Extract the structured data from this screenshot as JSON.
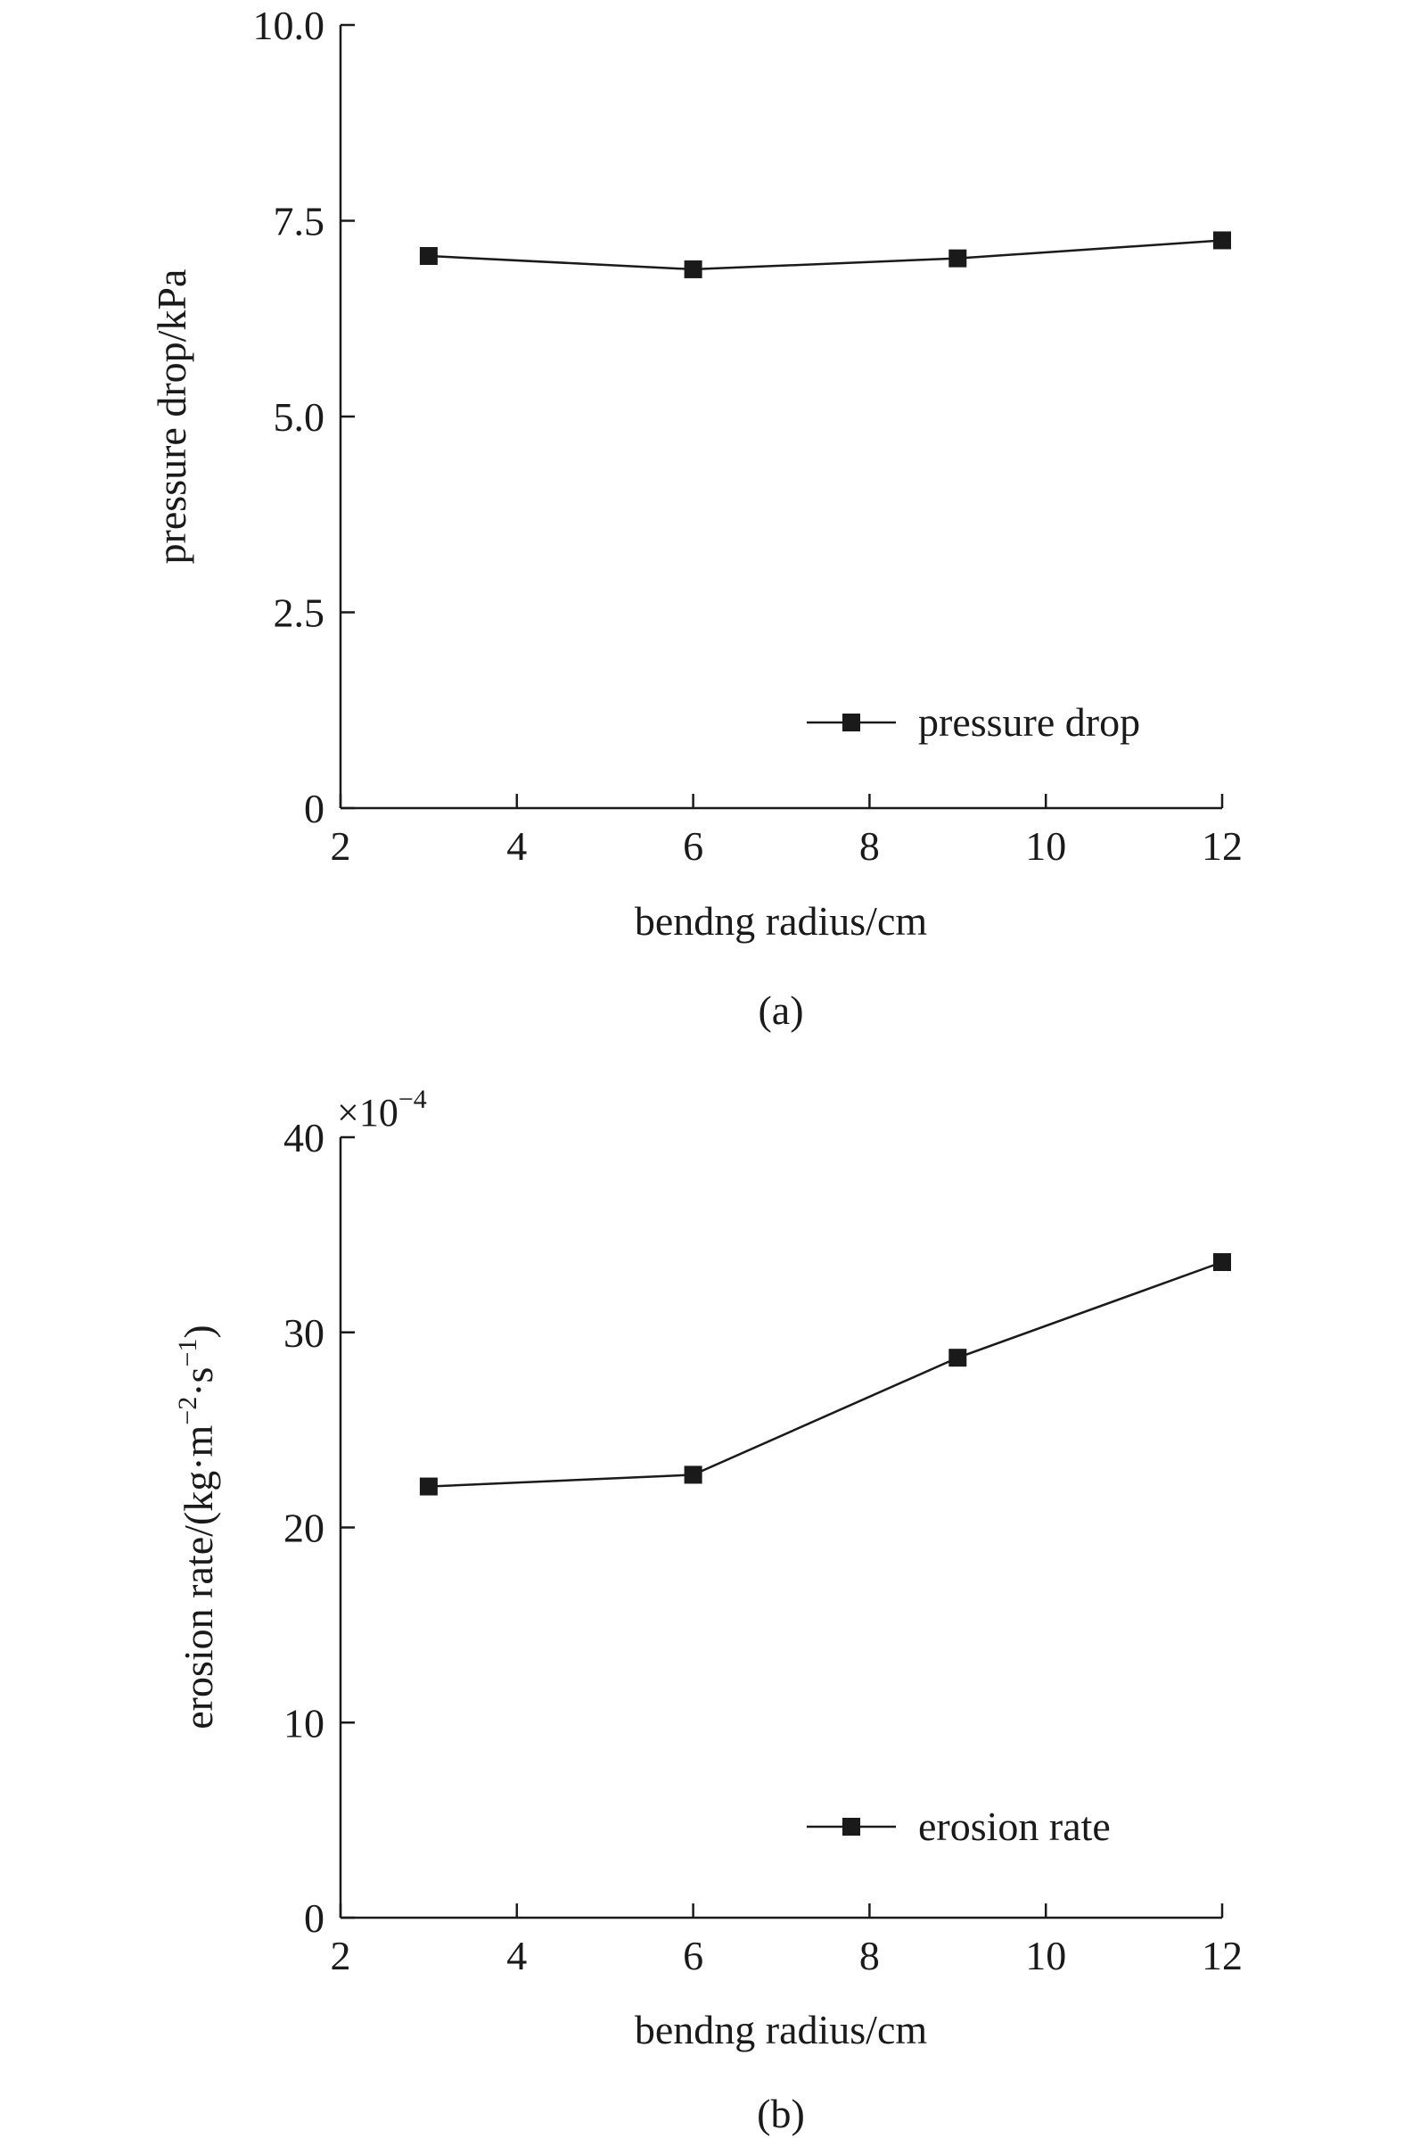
{
  "chart_data": [
    {
      "type": "line",
      "caption": "(a)",
      "xlabel": "bendng radius/cm",
      "ylabel": "pressure drop/kPa",
      "xlim": [
        2,
        12
      ],
      "ylim": [
        0,
        10
      ],
      "xticks": [
        2,
        4,
        6,
        8,
        10,
        12
      ],
      "xtick_labels": [
        "2",
        "4",
        "6",
        "8",
        "10",
        "12"
      ],
      "yticks": [
        0,
        2.5,
        5,
        7.5,
        10
      ],
      "ytick_labels": [
        "0",
        "2.5",
        "5.0",
        "7.5",
        "10.0"
      ],
      "grid": false,
      "legend_position": "lower-right",
      "series": [
        {
          "name": "pressure drop",
          "x": [
            3,
            6,
            9,
            12
          ],
          "values": [
            7.05,
            6.88,
            7.02,
            7.25
          ]
        }
      ]
    },
    {
      "type": "line",
      "caption": "(b)",
      "xlabel": "bendng radius/cm",
      "ylabel_base": "erosion rate/(kg·m",
      "ylabel_sup1": "−2",
      "ylabel_mid": "·s",
      "ylabel_sup2": "−1",
      "ylabel_end": ")",
      "y_multiplier_base": "×10",
      "y_multiplier_exp": "−4",
      "xlim": [
        2,
        12
      ],
      "ylim": [
        0,
        40
      ],
      "xticks": [
        2,
        4,
        6,
        8,
        10,
        12
      ],
      "xtick_labels": [
        "2",
        "4",
        "6",
        "8",
        "10",
        "12"
      ],
      "yticks": [
        0,
        10,
        20,
        30,
        40
      ],
      "ytick_labels": [
        "0",
        "10",
        "20",
        "30",
        "40"
      ],
      "grid": false,
      "legend_position": "lower-right",
      "series": [
        {
          "name": "erosion rate",
          "x": [
            3,
            6,
            9,
            12
          ],
          "values": [
            22.1,
            22.7,
            28.7,
            33.6
          ]
        }
      ]
    }
  ],
  "colors": {
    "line": "#1a1a1a",
    "marker": "#1a1a1a",
    "axis": "#1a1a1a"
  }
}
